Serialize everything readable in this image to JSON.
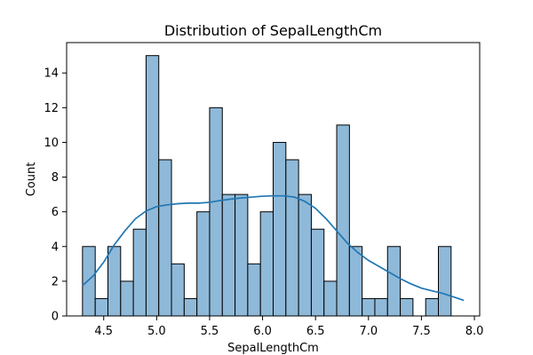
{
  "chart_data": {
    "type": "bar",
    "title": "Distribution of SepalLengthCm",
    "xlabel": "SepalLengthCm",
    "ylabel": "Count",
    "xlim": [
      4.15,
      8.05
    ],
    "ylim": [
      0,
      15.75
    ],
    "xticks": [
      4.5,
      5.0,
      5.5,
      6.0,
      6.5,
      7.0,
      7.5,
      8.0
    ],
    "xtick_labels": [
      "4.5",
      "5.0",
      "5.5",
      "6.0",
      "6.5",
      "7.0",
      "7.5",
      "8.0"
    ],
    "yticks": [
      0,
      2,
      4,
      6,
      8,
      10,
      12,
      14
    ],
    "ytick_labels": [
      "0",
      "2",
      "4",
      "6",
      "8",
      "10",
      "12",
      "14"
    ],
    "bin_start": 4.3,
    "bin_width": 0.12,
    "values": [
      4,
      1,
      4,
      2,
      5,
      15,
      9,
      3,
      1,
      6,
      12,
      7,
      7,
      3,
      6,
      10,
      9,
      7,
      5,
      2,
      11,
      4,
      1,
      1,
      4,
      1,
      0,
      1,
      4,
      0
    ],
    "kde": {
      "x": [
        4.3,
        4.4,
        4.5,
        4.6,
        4.7,
        4.8,
        4.9,
        5.0,
        5.1,
        5.2,
        5.3,
        5.4,
        5.5,
        5.6,
        5.7,
        5.8,
        5.9,
        6.0,
        6.1,
        6.2,
        6.3,
        6.4,
        6.5,
        6.6,
        6.7,
        6.8,
        6.9,
        7.0,
        7.1,
        7.2,
        7.3,
        7.4,
        7.5,
        7.6,
        7.7,
        7.8,
        7.9
      ],
      "y": [
        1.75,
        2.3,
        3.1,
        4.1,
        4.9,
        5.6,
        6.05,
        6.3,
        6.4,
        6.47,
        6.5,
        6.5,
        6.55,
        6.65,
        6.73,
        6.8,
        6.85,
        6.9,
        6.92,
        6.92,
        6.85,
        6.6,
        6.2,
        5.6,
        4.9,
        4.2,
        3.65,
        3.2,
        2.85,
        2.5,
        2.15,
        1.85,
        1.6,
        1.45,
        1.3,
        1.1,
        0.9
      ]
    },
    "grid": false,
    "colors": {
      "bar_fill": "#8fb9d9",
      "bar_edge": "#000000",
      "kde_line": "#1f77b4",
      "axis": "#000000"
    }
  }
}
